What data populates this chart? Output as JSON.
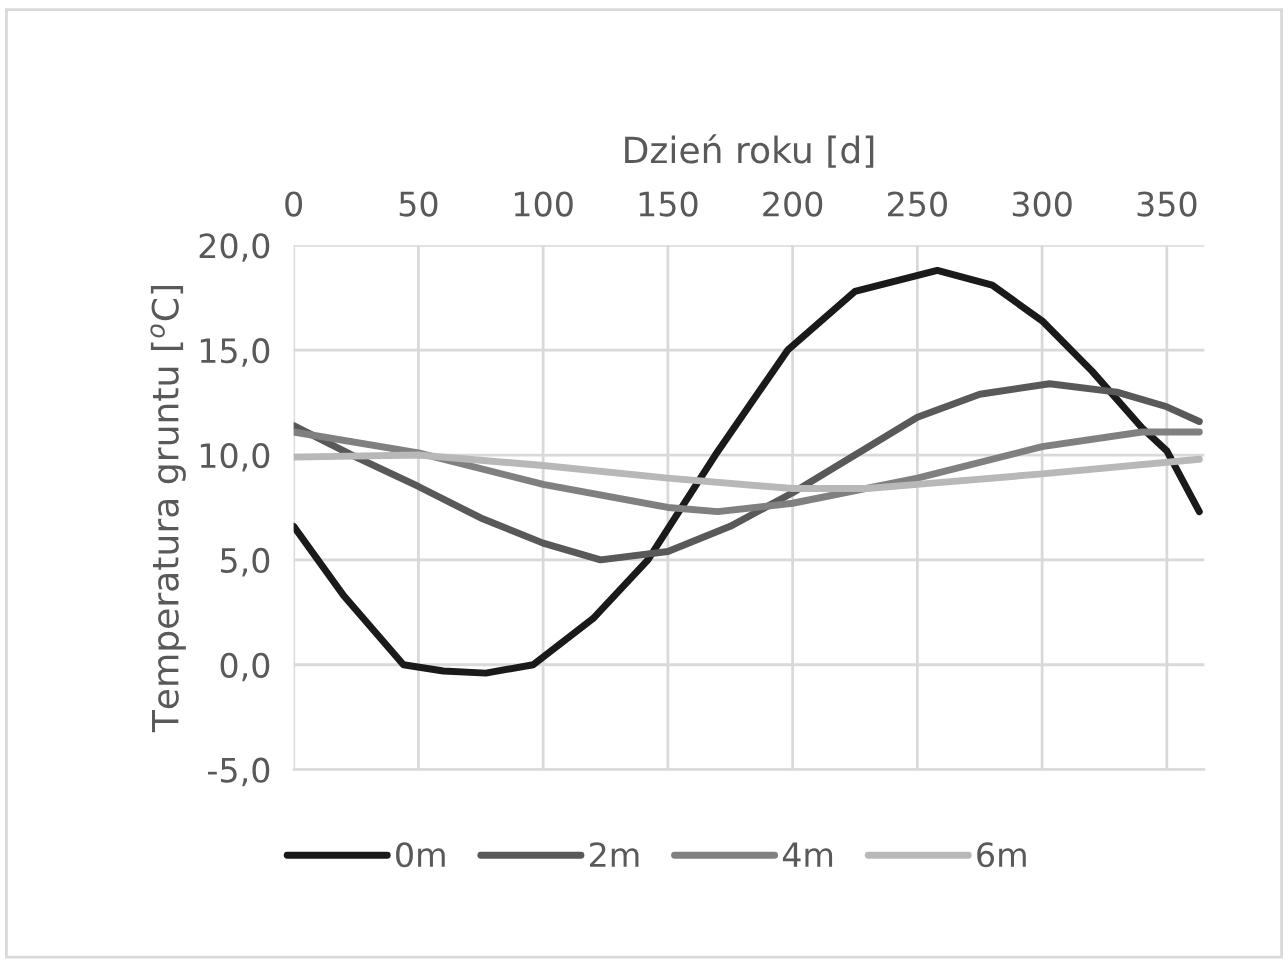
{
  "chart_data": {
    "type": "line",
    "xlabel": "Dzień roku [d]",
    "ylabel": "Temperatura gruntu [$^{o}$C]",
    "xlim": [
      0,
      365
    ],
    "xticks": [
      0,
      50,
      100,
      150,
      200,
      250,
      300,
      350
    ],
    "ylim": [
      -5,
      20
    ],
    "yticks": [
      {
        "value": -5,
        "label": "-5,0"
      },
      {
        "value": 0,
        "label": "0,0"
      },
      {
        "value": 5,
        "label": "5,0"
      },
      {
        "value": 10,
        "label": "10,0"
      },
      {
        "value": 15,
        "label": "15,0"
      },
      {
        "value": 20,
        "label": "20,0"
      }
    ],
    "grid": true,
    "legend": "bottom",
    "marker": "none",
    "line_style": "solid",
    "series": [
      {
        "name": "0m",
        "color": "#1a1a1a",
        "x": [
          0,
          20,
          44,
          60,
          77,
          96,
          120,
          142,
          169,
          198,
          225,
          258,
          280,
          300,
          320,
          340,
          350,
          363
        ],
        "values": [
          6.6,
          3.3,
          0.0,
          -0.3,
          -0.4,
          0.0,
          2.2,
          5.0,
          10.0,
          15.0,
          17.8,
          18.8,
          18.1,
          16.4,
          14.0,
          11.3,
          10.2,
          7.3
        ]
      },
      {
        "name": "2m",
        "color": "#595959",
        "x": [
          0,
          25,
          50,
          75,
          100,
          123,
          150,
          175,
          200,
          225,
          250,
          275,
          303,
          330,
          350,
          363
        ],
        "values": [
          11.4,
          9.9,
          8.5,
          7.0,
          5.8,
          5.0,
          5.4,
          6.6,
          8.2,
          10.0,
          11.8,
          12.9,
          13.4,
          13.0,
          12.3,
          11.6
        ]
      },
      {
        "name": "4m",
        "color": "#808080",
        "x": [
          0,
          50,
          100,
          150,
          170,
          200,
          250,
          300,
          340,
          363
        ],
        "values": [
          11.1,
          10.1,
          8.6,
          7.5,
          7.3,
          7.7,
          8.9,
          10.4,
          11.1,
          11.1
        ]
      },
      {
        "name": "6m",
        "color": "#b8b8b8",
        "x": [
          0,
          50,
          100,
          150,
          200,
          230,
          250,
          300,
          363
        ],
        "values": [
          9.9,
          10.0,
          9.5,
          8.9,
          8.4,
          8.4,
          8.6,
          9.1,
          9.8
        ]
      }
    ]
  }
}
